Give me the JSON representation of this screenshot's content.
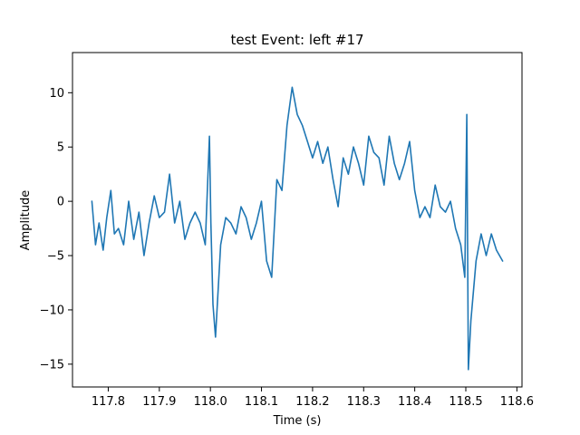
{
  "chart_data": {
    "type": "line",
    "title": "test Event: left #17",
    "xlabel": "Time (s)",
    "ylabel": "Amplitude",
    "xlim": [
      117.73,
      118.61
    ],
    "ylim": [
      -17.1,
      13.7
    ],
    "x_ticks": [
      "117.8",
      "117.9",
      "118.0",
      "118.1",
      "118.2",
      "118.3",
      "118.4",
      "118.5",
      "118.6"
    ],
    "y_ticks": [
      "−15",
      "−10",
      "−5",
      "0",
      "5",
      "10"
    ],
    "grid": false,
    "series": [
      {
        "color": "#1f77b4",
        "x": [
          117.768,
          117.775,
          117.782,
          117.79,
          117.797,
          117.805,
          117.812,
          117.82,
          117.83,
          117.84,
          117.85,
          117.86,
          117.87,
          117.88,
          117.89,
          117.9,
          117.91,
          117.92,
          117.93,
          117.94,
          117.95,
          117.96,
          117.97,
          117.98,
          117.99,
          117.998,
          118.001,
          118.005,
          118.01,
          118.02,
          118.03,
          118.04,
          118.05,
          118.06,
          118.07,
          118.08,
          118.09,
          118.1,
          118.11,
          118.12,
          118.13,
          118.14,
          118.15,
          118.16,
          118.17,
          118.18,
          118.19,
          118.2,
          118.21,
          118.22,
          118.23,
          118.24,
          118.25,
          118.26,
          118.27,
          118.28,
          118.29,
          118.3,
          118.31,
          118.32,
          118.33,
          118.34,
          118.35,
          118.36,
          118.37,
          118.38,
          118.39,
          118.4,
          118.41,
          118.42,
          118.43,
          118.44,
          118.45,
          118.46,
          118.47,
          118.48,
          118.49,
          118.498,
          118.502,
          118.505,
          118.51,
          118.52,
          118.53,
          118.54,
          118.55,
          118.56,
          118.572
        ],
        "y": [
          0.0,
          -4.0,
          -2.0,
          -4.5,
          -1.5,
          1.0,
          -3.0,
          -2.5,
          -4.0,
          0.0,
          -3.5,
          -1.0,
          -5.0,
          -2.0,
          0.5,
          -1.5,
          -1.0,
          2.5,
          -2.0,
          0.0,
          -3.5,
          -2.0,
          -1.0,
          -2.0,
          -4.0,
          6.0,
          -2.0,
          -9.5,
          -12.5,
          -4.0,
          -1.5,
          -2.0,
          -3.0,
          -0.5,
          -1.5,
          -3.5,
          -2.0,
          0.0,
          -5.5,
          -7.0,
          2.0,
          1.0,
          7.0,
          10.5,
          8.0,
          7.0,
          5.5,
          4.0,
          5.5,
          3.5,
          5.0,
          2.0,
          -0.5,
          4.0,
          2.5,
          5.0,
          3.5,
          1.5,
          6.0,
          4.5,
          4.0,
          1.5,
          6.0,
          3.5,
          2.0,
          3.5,
          5.5,
          1.0,
          -1.5,
          -0.5,
          -1.5,
          1.5,
          -0.5,
          -1.0,
          0.0,
          -2.5,
          -4.0,
          -7.0,
          8.0,
          -15.5,
          -11.0,
          -5.5,
          -3.0,
          -5.0,
          -3.0,
          -4.5,
          -5.5
        ]
      }
    ]
  }
}
